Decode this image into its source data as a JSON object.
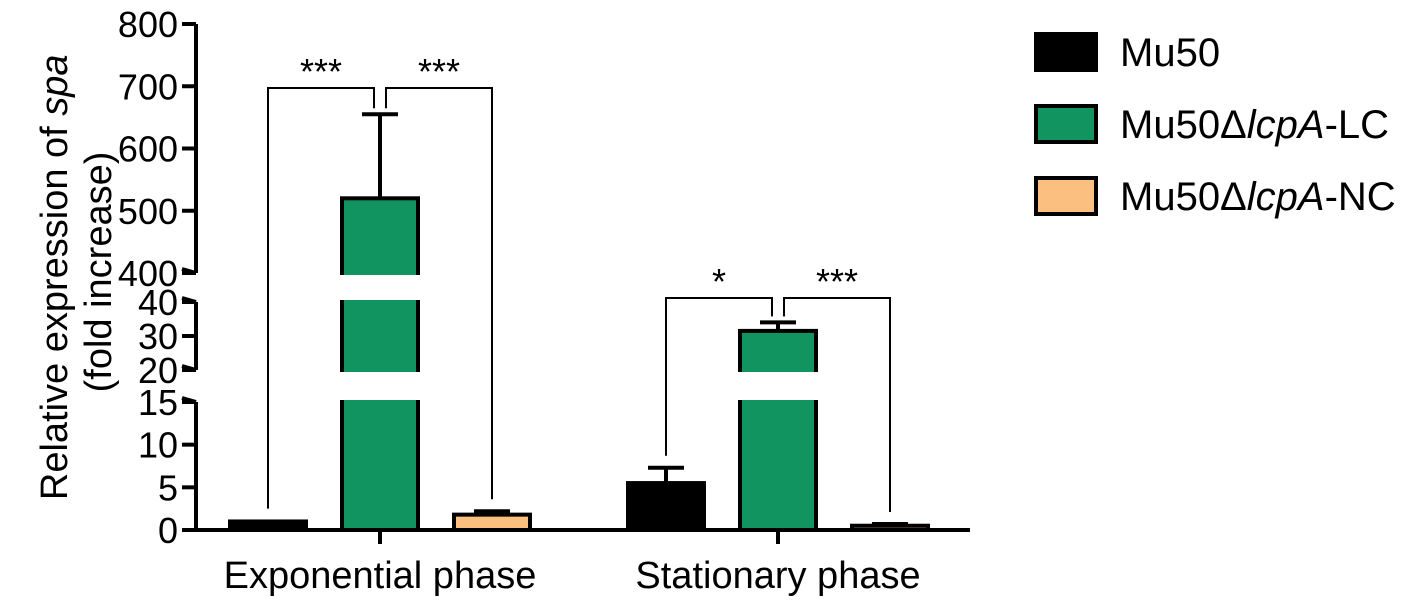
{
  "chart_data": {
    "type": "bar",
    "title": "",
    "ylabel_line1": "Relative expression of ",
    "ylabel_italic": "spa",
    "ylabel_line2": "(fold increase)",
    "xlabel": "",
    "categories": [
      "Exponential phase",
      "Stationary phase"
    ],
    "series": [
      {
        "name": "Mu50",
        "color": "#000000",
        "values": [
          1.0,
          5.5
        ],
        "errors": [
          0.1,
          1.8
        ]
      },
      {
        "name": "Mu50ΔlcpA-LC",
        "name_parts": [
          "Mu50Δ",
          "lcpA",
          "-LC"
        ],
        "color": "#129460",
        "values": [
          520,
          31.5
        ],
        "errors": [
          135,
          2.5
        ]
      },
      {
        "name": "Mu50ΔlcpA-NC",
        "name_parts": [
          "Mu50Δ",
          "lcpA",
          "-NC"
        ],
        "color": "#fbc080",
        "values": [
          1.8,
          0.5
        ],
        "errors": [
          0.4,
          0.2
        ]
      }
    ],
    "axis_segments": [
      {
        "range": [
          0,
          15
        ],
        "ticks": [
          "0",
          "5",
          "10",
          "15"
        ]
      },
      {
        "range": [
          20,
          40
        ],
        "ticks": [
          "20",
          "30",
          "40"
        ]
      },
      {
        "range": [
          400,
          800
        ],
        "ticks": [
          "400",
          "500",
          "600",
          "700",
          "800"
        ]
      }
    ],
    "y_broken": true,
    "grid": false,
    "legend_position": "right",
    "significance": [
      {
        "category": 0,
        "label": "***",
        "compare": [
          0,
          1
        ]
      },
      {
        "category": 0,
        "label": "***",
        "compare": [
          1,
          2
        ]
      },
      {
        "category": 1,
        "label": "*",
        "compare": [
          0,
          1
        ]
      },
      {
        "category": 1,
        "label": "***",
        "compare": [
          1,
          2
        ]
      }
    ]
  }
}
